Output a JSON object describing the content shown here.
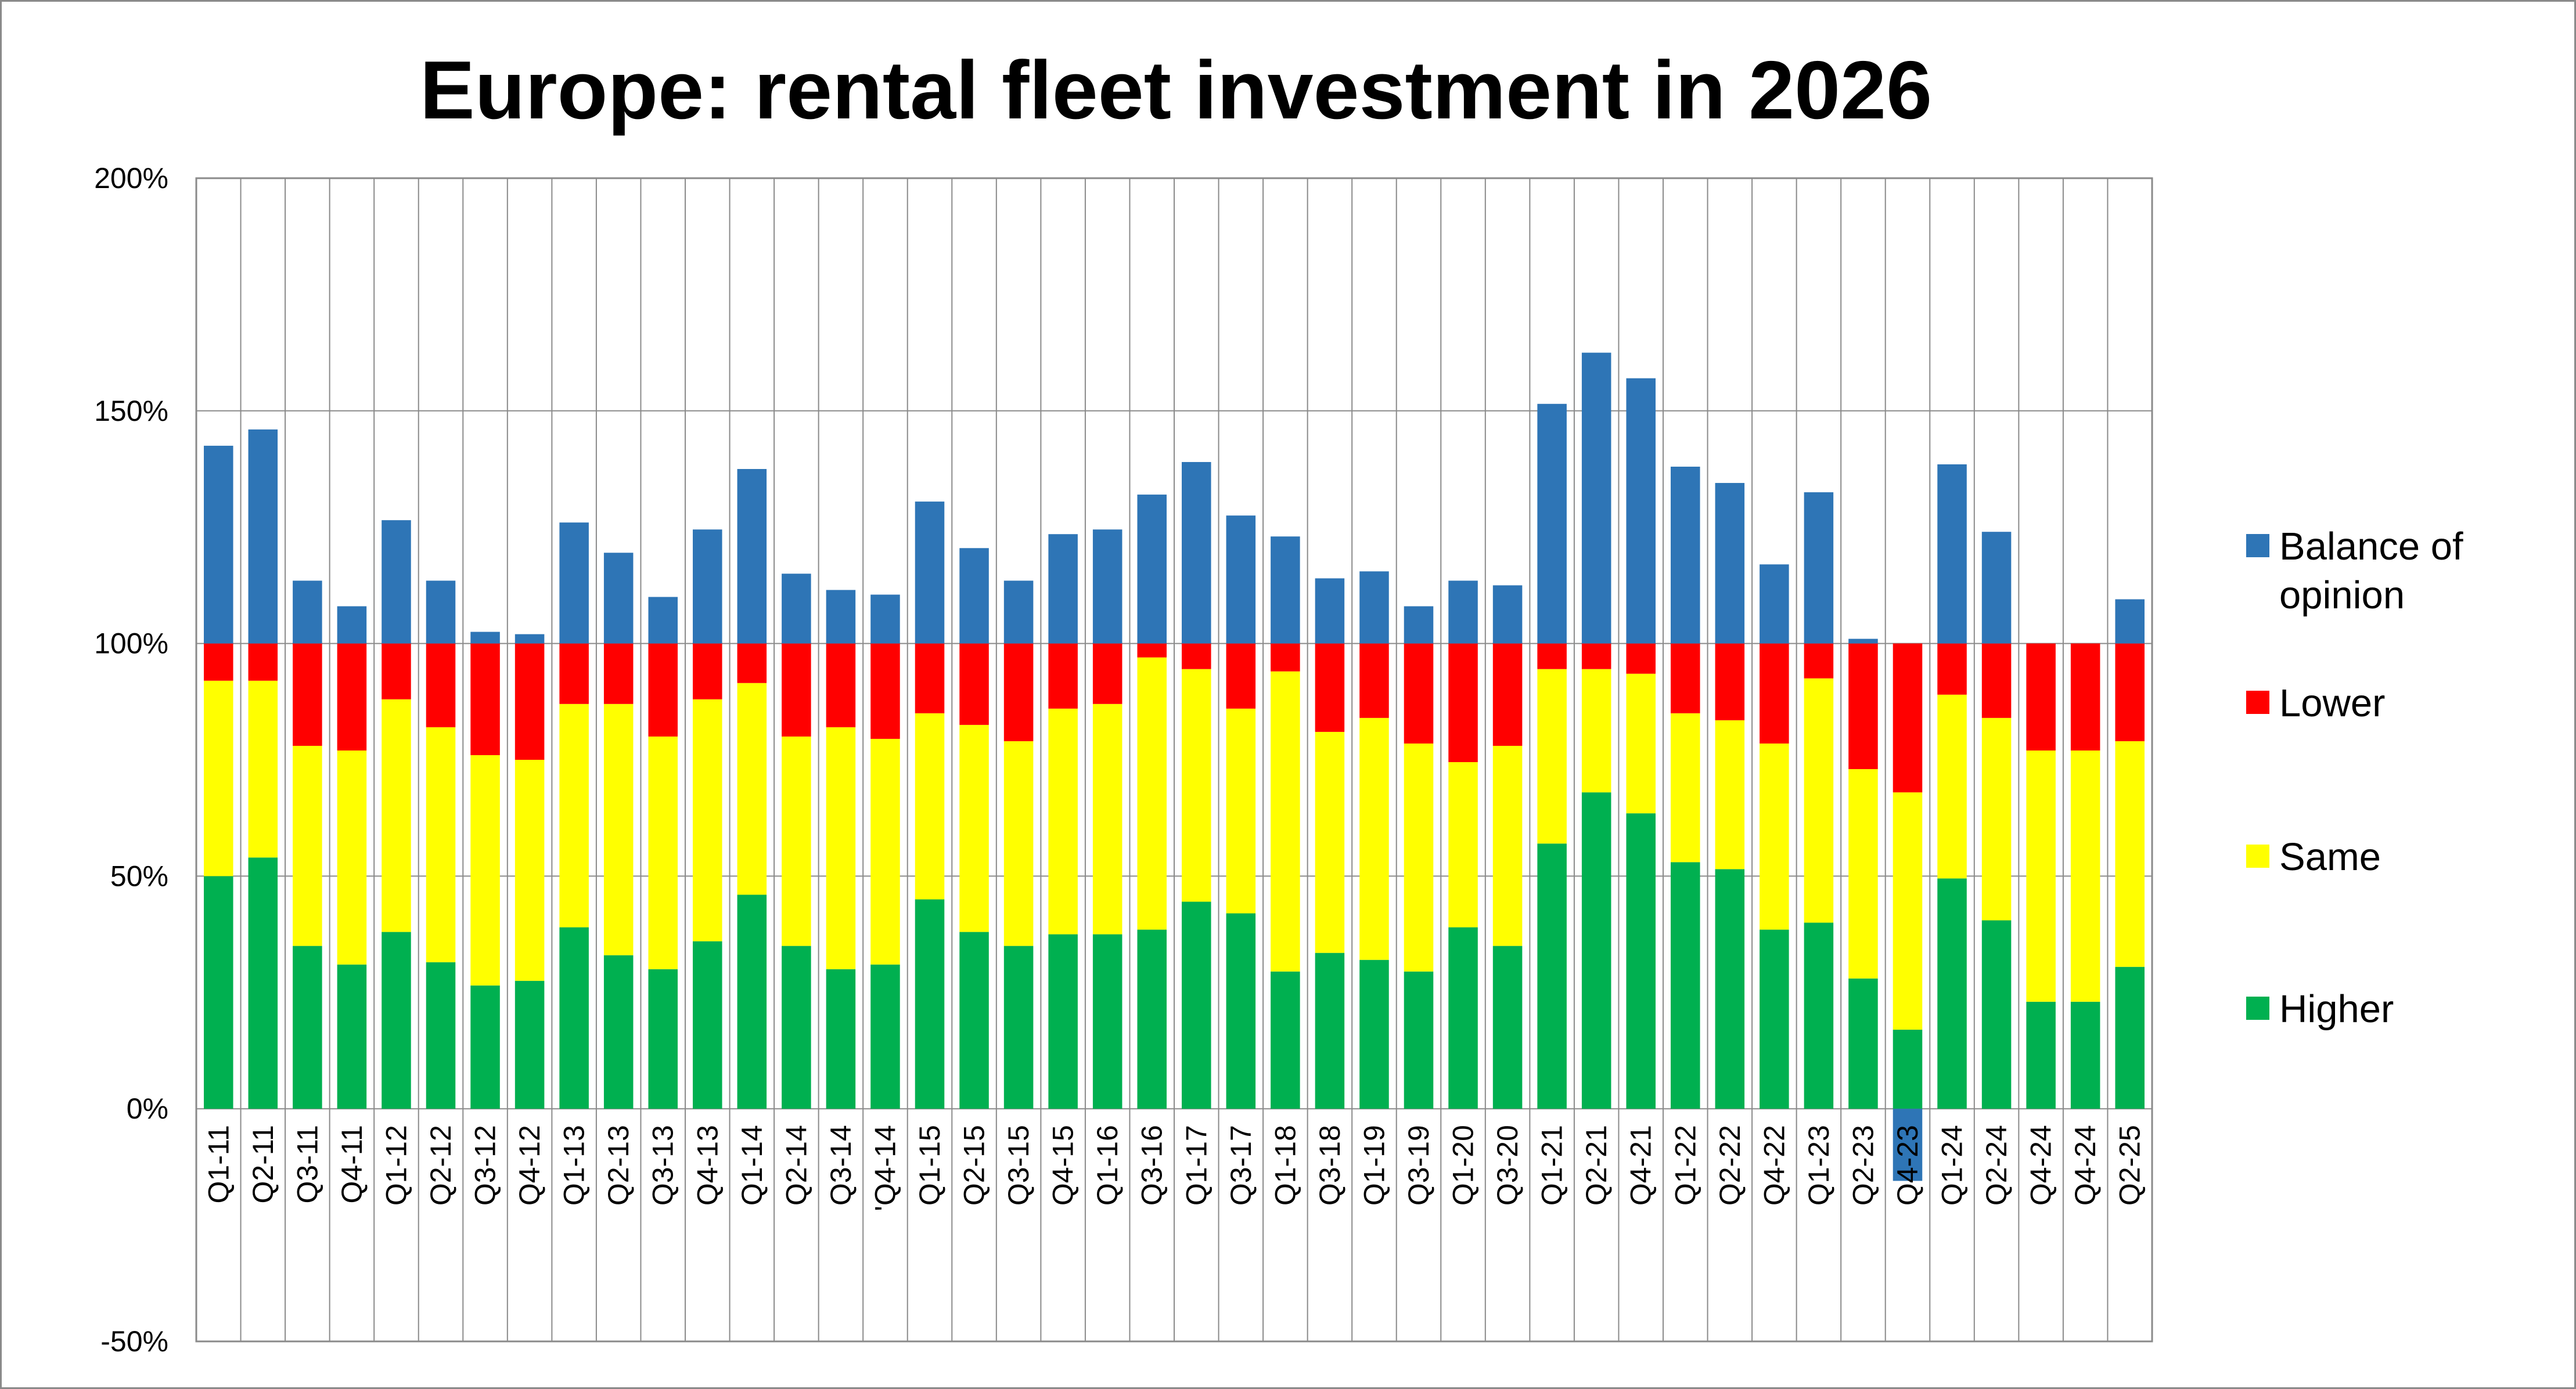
{
  "chart_data": {
    "type": "bar",
    "stacked": true,
    "title": "Europe: rental fleet investment in 2026",
    "xlabel": "",
    "ylabel": "",
    "ylim": [
      -50,
      200
    ],
    "y_ticks": [
      "-50%",
      "0%",
      "50%",
      "100%",
      "150%",
      "200%"
    ],
    "y_tick_values": [
      -50,
      0,
      50,
      100,
      150,
      200
    ],
    "grid": true,
    "legend_position": "right",
    "categories": [
      "Q1-11",
      "Q2-11",
      "Q3-11",
      "Q4-11",
      "Q1-12",
      "Q2-12",
      "Q3-12",
      "Q4-12",
      "Q1-13",
      "Q2-13",
      "Q3-13",
      "Q4-13",
      "Q1-14",
      "Q2-14",
      "Q3-14",
      "'Q4-14",
      "Q1-15",
      "Q2-15",
      "Q3-15",
      "Q4-15",
      "Q1-16",
      "Q3-16",
      "Q1-17",
      "Q3-17",
      "Q1-18",
      "Q3-18",
      "Q1-19",
      "Q3-19",
      "Q1-20",
      "Q3-20",
      "Q1-21",
      "Q2-21",
      "Q4-21",
      "Q1-22",
      "Q2-22",
      "Q4-22",
      "Q1-23",
      "Q2-23",
      "Q4-23",
      "Q1-24",
      "Q2-24",
      "Q4-24",
      "Q4-24",
      "Q2-25"
    ],
    "series": [
      {
        "name": "Higher",
        "color": "#00b050",
        "values": [
          50,
          54,
          35,
          31,
          38,
          31.5,
          26.5,
          27.5,
          39,
          33,
          30,
          36,
          46,
          35,
          30,
          31,
          45,
          38,
          35,
          37.5,
          37.5,
          38.5,
          44.5,
          42,
          29.5,
          33.5,
          32,
          29.5,
          39,
          35,
          57,
          68,
          63.5,
          53,
          51.5,
          38.5,
          40,
          28,
          17,
          49.5,
          40.5,
          23,
          23,
          30.5
        ]
      },
      {
        "name": "Same",
        "color": "#ffff00",
        "values": [
          42,
          38,
          43,
          46,
          50,
          50.5,
          49.5,
          47.5,
          48,
          54,
          50,
          52,
          45.5,
          45,
          52,
          48.5,
          40,
          44.5,
          44,
          48.5,
          49.5,
          58.5,
          50,
          44,
          64.5,
          47.5,
          52,
          49,
          35.5,
          43,
          37.5,
          26.5,
          30,
          32,
          32,
          40,
          52.5,
          45,
          51,
          39.5,
          43.5,
          54,
          54,
          48.5
        ]
      },
      {
        "name": "Lower",
        "color": "#ff0000",
        "values": [
          8,
          8,
          22,
          23,
          12,
          18,
          24,
          25,
          13,
          13,
          20,
          12,
          8.5,
          20,
          18,
          20.5,
          15,
          17.5,
          21,
          14,
          13,
          3,
          5.5,
          14,
          6,
          19,
          16,
          21.5,
          25.5,
          22,
          5.5,
          5.5,
          6.5,
          15,
          16.5,
          21.5,
          7.5,
          27,
          32,
          11,
          16,
          23,
          23,
          21
        ]
      },
      {
        "name": "Balance of opinion",
        "color": "#2e75b6",
        "values": [
          42.5,
          46,
          13.5,
          8,
          26.5,
          13.5,
          2.5,
          2,
          26,
          19.5,
          10,
          24.5,
          37.5,
          15,
          11.5,
          10.5,
          30.5,
          20.5,
          13.5,
          23.5,
          24.5,
          32,
          39,
          27.5,
          23,
          14,
          15.5,
          8,
          13.5,
          12.5,
          51.5,
          62.5,
          57,
          38,
          34.5,
          17,
          32.5,
          1,
          -15.5,
          38.5,
          24,
          0,
          0,
          9.5
        ]
      }
    ],
    "legend": [
      "Balance of opinion",
      "Lower",
      "Same",
      "Higher"
    ],
    "legend_lines": [
      [
        "Balance of",
        "opinion"
      ],
      [
        "Lower"
      ],
      [
        "Same"
      ],
      [
        "Higher"
      ]
    ]
  }
}
